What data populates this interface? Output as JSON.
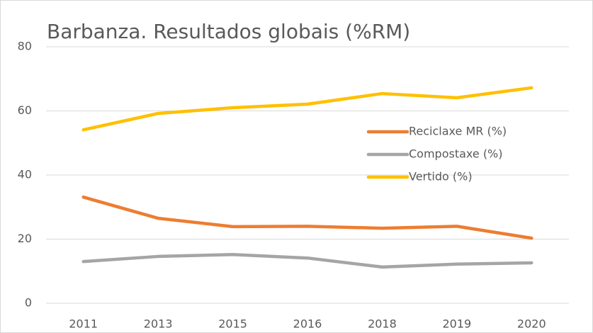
{
  "chart_data": {
    "type": "line",
    "title": "Barbanza. Resultados globais (%RM)",
    "categories": [
      "2011",
      "2013",
      "2015",
      "2016",
      "2018",
      "2019",
      "2020"
    ],
    "series": [
      {
        "name": "Reciclaxe MR (%)",
        "color": "#ed7d31",
        "values": [
          33.1,
          26.5,
          23.9,
          24.0,
          23.4,
          24.0,
          20.3
        ]
      },
      {
        "name": "Compostaxe (%)",
        "color": "#a5a5a5",
        "values": [
          13.0,
          14.6,
          15.2,
          14.1,
          11.3,
          12.2,
          12.6
        ]
      },
      {
        "name": "Vertido (%)",
        "color": "#ffc000",
        "values": [
          54.1,
          59.2,
          61.0,
          62.1,
          65.4,
          64.1,
          67.2
        ]
      }
    ],
    "ylim": [
      0,
      80
    ],
    "yticks": [
      0,
      20,
      40,
      60,
      80
    ],
    "grid": true
  }
}
